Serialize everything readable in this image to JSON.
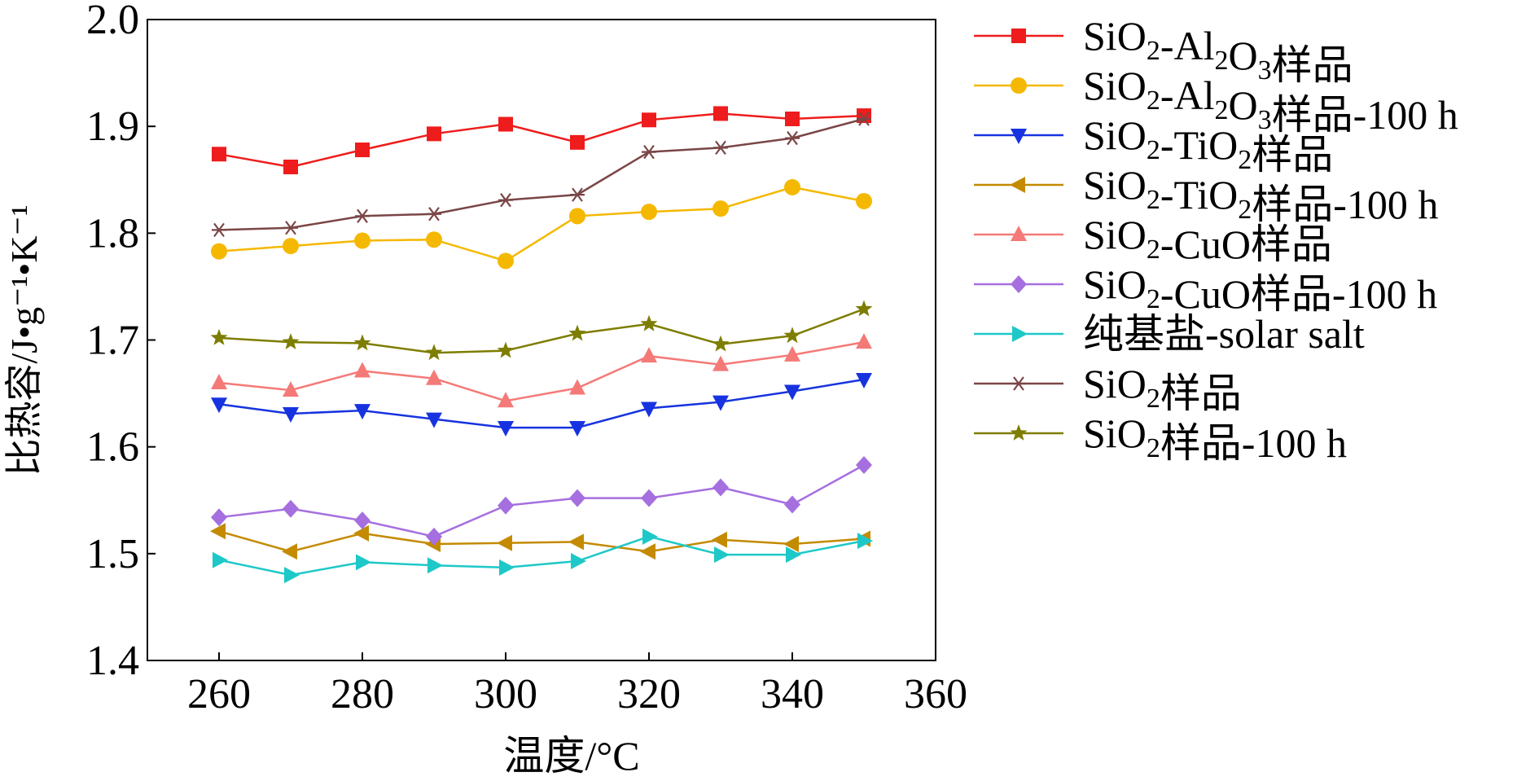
{
  "chart_data": {
    "type": "line",
    "title": "",
    "xlabel": "温度/°C",
    "ylabel": "比热容/J•g⁻¹•K⁻¹",
    "xlim": [
      250,
      360
    ],
    "ylim": [
      1.4,
      2.0
    ],
    "xticks": [
      260,
      280,
      300,
      320,
      340,
      360
    ],
    "yticks": [
      1.4,
      1.5,
      1.6,
      1.7,
      1.8,
      1.9,
      2.0
    ],
    "ytick_labels": [
      "1.4",
      "1.5",
      "1.6",
      "1.7",
      "1.8",
      "1.9",
      "2.0"
    ],
    "grid": false,
    "legend_position": "right",
    "x": [
      260,
      270,
      280,
      290,
      300,
      310,
      320,
      330,
      340,
      350
    ],
    "series": [
      {
        "name": "SiO₂-Al₂O₃样品",
        "color": "#ee1c1c",
        "marker": "square",
        "values": [
          1.874,
          1.862,
          1.878,
          1.893,
          1.902,
          1.885,
          1.906,
          1.912,
          1.907,
          1.91
        ]
      },
      {
        "name": "SiO₂-Al₂O₃样品-100 h",
        "color": "#f5b800",
        "marker": "circle",
        "values": [
          1.783,
          1.788,
          1.793,
          1.794,
          1.774,
          1.816,
          1.82,
          1.823,
          1.843,
          1.83
        ]
      },
      {
        "name": "SiO₂-TiO₂样品",
        "color": "#1733e0",
        "marker": "triangle-down",
        "values": [
          1.64,
          1.631,
          1.634,
          1.626,
          1.618,
          1.618,
          1.636,
          1.642,
          1.652,
          1.663
        ]
      },
      {
        "name": "SiO₂-TiO₂样品-100 h",
        "color": "#c48a00",
        "marker": "triangle-left",
        "values": [
          1.521,
          1.502,
          1.519,
          1.509,
          1.51,
          1.511,
          1.502,
          1.513,
          1.509,
          1.514
        ]
      },
      {
        "name": "SiO₂-CuO样品",
        "color": "#f47a78",
        "marker": "triangle-up",
        "values": [
          1.66,
          1.653,
          1.671,
          1.664,
          1.643,
          1.655,
          1.685,
          1.677,
          1.686,
          1.698
        ]
      },
      {
        "name": "SiO₂-CuO样品-100 h",
        "color": "#a56fe0",
        "marker": "diamond",
        "values": [
          1.534,
          1.542,
          1.531,
          1.516,
          1.545,
          1.552,
          1.552,
          1.562,
          1.546,
          1.583
        ]
      },
      {
        "name": "纯基盐-solar salt",
        "color": "#1ec8c8",
        "marker": "triangle-right",
        "values": [
          1.494,
          1.48,
          1.492,
          1.489,
          1.487,
          1.493,
          1.516,
          1.499,
          1.499,
          1.512
        ]
      },
      {
        "name": "SiO₂样品",
        "color": "#7a4646",
        "marker": "asterisk",
        "values": [
          1.803,
          1.805,
          1.816,
          1.818,
          1.831,
          1.836,
          1.876,
          1.88,
          1.889,
          1.907
        ]
      },
      {
        "name": "SiO₂样品-100 h",
        "color": "#7d7d00",
        "marker": "star",
        "values": [
          1.702,
          1.698,
          1.697,
          1.688,
          1.69,
          1.706,
          1.715,
          1.696,
          1.704,
          1.729
        ]
      }
    ]
  }
}
